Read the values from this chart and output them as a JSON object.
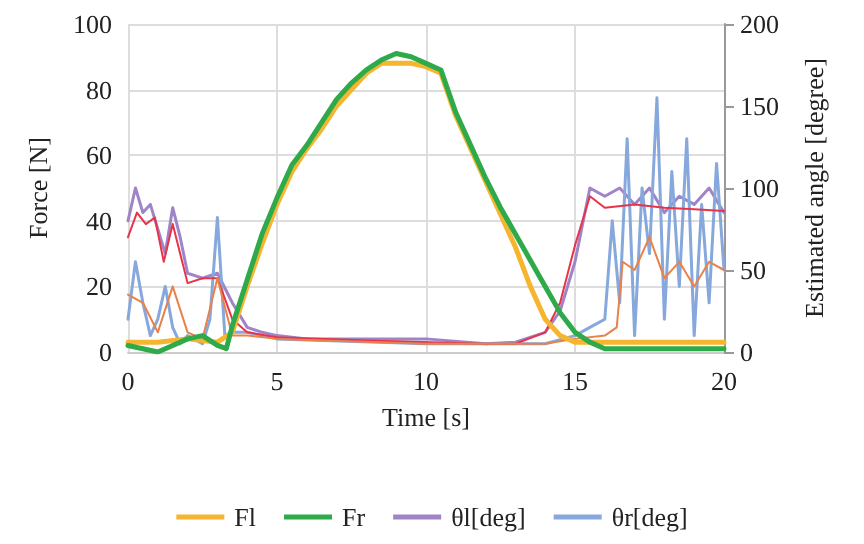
{
  "chart_data": {
    "type": "line",
    "xlabel": "Time [s]",
    "ylabel": "Force [N]",
    "y2label": "Estimated angle [degree]",
    "xlim": [
      0,
      20
    ],
    "xticks": [
      0,
      5,
      10,
      15,
      20
    ],
    "ylim": [
      0,
      100
    ],
    "yticks": [
      0,
      20,
      40,
      60,
      80,
      100
    ],
    "y2lim": [
      0,
      200
    ],
    "y2ticks": [
      0,
      50,
      100,
      150,
      200
    ],
    "grid": true,
    "legend": "bottom",
    "marker": "none",
    "series": [
      {
        "name": "θl[deg]",
        "color": "#a084c8",
        "axis": "y2",
        "x": [
          0,
          0.25,
          0.5,
          0.75,
          1,
          1.25,
          1.5,
          1.75,
          2,
          2.5,
          3,
          3.5,
          4,
          4.5,
          5,
          6,
          8,
          10,
          12,
          13,
          14,
          14.5,
          15,
          15.5,
          16,
          16.5,
          17,
          17.5,
          18,
          18.5,
          19,
          19.5,
          20
        ],
        "values": [
          80,
          100,
          85,
          90,
          75,
          60,
          88,
          70,
          48,
          45,
          48,
          30,
          15,
          12,
          10,
          8,
          8,
          8,
          5,
          6,
          12,
          25,
          55,
          100,
          95,
          100,
          90,
          100,
          85,
          95,
          90,
          100,
          85
        ]
      },
      {
        "name": "θr[deg]",
        "color": "#86a8dc",
        "axis": "y2",
        "x": [
          0,
          0.25,
          0.5,
          0.75,
          1,
          1.25,
          1.5,
          1.75,
          2,
          2.5,
          2.75,
          3,
          3.25,
          3.5,
          4,
          5,
          10,
          14,
          15,
          15.5,
          16,
          16.25,
          16.5,
          16.75,
          17,
          17.25,
          17.5,
          17.75,
          18,
          18.25,
          18.5,
          18.75,
          19,
          19.25,
          19.5,
          19.75,
          20
        ],
        "values": [
          20,
          55,
          30,
          10,
          20,
          40,
          15,
          5,
          10,
          5,
          20,
          82,
          10,
          12,
          12,
          8,
          5,
          5,
          10,
          15,
          20,
          80,
          30,
          130,
          10,
          100,
          60,
          155,
          20,
          110,
          40,
          130,
          10,
          90,
          30,
          115,
          50
        ]
      },
      {
        "color": "#e8344a",
        "axis": "y2",
        "x": [
          0,
          0.3,
          0.6,
          0.9,
          1.2,
          1.5,
          2,
          2.5,
          3,
          3.5,
          4,
          5,
          8,
          12,
          13,
          14,
          14.5,
          15,
          15.5,
          16,
          17,
          18,
          19,
          20
        ],
        "values": [
          70,
          85,
          78,
          82,
          55,
          78,
          42,
          45,
          45,
          20,
          12,
          9,
          7,
          5,
          5,
          12,
          30,
          65,
          95,
          88,
          90,
          88,
          87,
          86
        ]
      },
      {
        "color": "#e8824a",
        "axis": "y2",
        "x": [
          0,
          0.5,
          1,
          1.5,
          2,
          2.5,
          3,
          3.5,
          4,
          5,
          10,
          14,
          15,
          16,
          16.4,
          16.6,
          17,
          17.5,
          18,
          18.5,
          19,
          19.5,
          20
        ],
        "values": [
          35,
          30,
          12,
          40,
          12,
          8,
          45,
          10,
          10,
          8,
          5,
          5,
          8,
          10,
          15,
          55,
          50,
          70,
          45,
          55,
          40,
          55,
          50
        ]
      },
      {
        "name": "Fl",
        "color": "#f5b52e",
        "x": [
          0,
          1,
          2,
          3,
          3.5,
          4,
          4.5,
          5,
          5.5,
          6,
          6.5,
          7,
          7.5,
          8,
          8.5,
          9,
          9.5,
          10,
          10.5,
          11,
          11.5,
          12,
          12.5,
          13,
          13.5,
          14,
          14.5,
          15,
          16,
          20
        ],
        "values": [
          3,
          3,
          4,
          3,
          6,
          20,
          33,
          45,
          55,
          62,
          68,
          75,
          80,
          85,
          88,
          88,
          88,
          87,
          85,
          72,
          62,
          52,
          42,
          32,
          20,
          10,
          5,
          3,
          3,
          3
        ]
      },
      {
        "name": "Fr",
        "color": "#2eaa4a",
        "x": [
          0,
          0.5,
          1,
          1.5,
          2,
          2.5,
          3,
          3.3,
          3.5,
          4,
          4.5,
          5,
          5.5,
          6,
          6.5,
          7,
          7.5,
          8,
          8.5,
          9,
          9.5,
          10,
          10.5,
          11,
          11.5,
          12,
          12.5,
          13,
          13.5,
          14,
          14.5,
          15,
          15.5,
          16,
          20
        ],
        "values": [
          2,
          1,
          0,
          2,
          4,
          5,
          2,
          1,
          8,
          22,
          36,
          47,
          57,
          63,
          70,
          77,
          82,
          86,
          89,
          91,
          90,
          88,
          86,
          73,
          63,
          53,
          44,
          36,
          28,
          20,
          12,
          6,
          3,
          1,
          1
        ]
      }
    ]
  }
}
